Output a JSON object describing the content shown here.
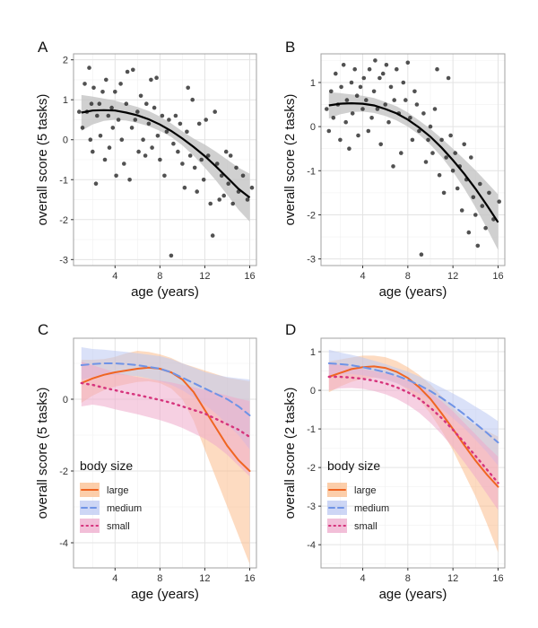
{
  "figure": {
    "panel_letters": [
      "A",
      "B",
      "C",
      "D"
    ]
  },
  "colors": {
    "large": "#f06522",
    "medium": "#6f93e6",
    "small": "#d6337c",
    "large_band": "#fbbe8e",
    "medium_band": "#bcc8f2",
    "small_band": "#eeaacb",
    "points": "#333333",
    "fit": "#000000",
    "fit_band": "#c4c4c4",
    "grid_major": "#e3e3e3",
    "grid_minor": "#f0f0f0",
    "panel_border": "#a0a0a0"
  },
  "chart_data": [
    {
      "panel": "A",
      "type": "scatter",
      "xlabel": "age (years)",
      "ylabel": "overall score (5 tasks)",
      "xlim": [
        0.3,
        16.6
      ],
      "ylim": [
        -3.15,
        2.15
      ],
      "xticks": [
        4,
        8,
        12,
        16
      ],
      "yticks": [
        -3,
        -2,
        -1,
        0,
        1,
        2
      ],
      "points": [
        [
          0.8,
          0.7
        ],
        [
          1.1,
          0.3
        ],
        [
          1.3,
          1.4
        ],
        [
          1.5,
          0.7
        ],
        [
          1.7,
          1.8
        ],
        [
          1.8,
          0.0
        ],
        [
          1.9,
          0.9
        ],
        [
          2.0,
          -0.3
        ],
        [
          2.1,
          1.3
        ],
        [
          2.3,
          -1.1
        ],
        [
          2.4,
          0.6
        ],
        [
          2.6,
          0.9
        ],
        [
          2.7,
          0.1
        ],
        [
          2.9,
          1.2
        ],
        [
          3.1,
          -0.5
        ],
        [
          3.2,
          1.5
        ],
        [
          3.4,
          0.6
        ],
        [
          3.5,
          -0.2
        ],
        [
          3.7,
          0.8
        ],
        [
          3.8,
          0.3
        ],
        [
          4.0,
          1.2
        ],
        [
          4.1,
          -0.9
        ],
        [
          4.3,
          0.5
        ],
        [
          4.5,
          1.4
        ],
        [
          4.6,
          0.0
        ],
        [
          4.8,
          -0.6
        ],
        [
          5.0,
          0.9
        ],
        [
          5.1,
          1.7
        ],
        [
          5.3,
          -1.0
        ],
        [
          5.5,
          0.3
        ],
        [
          5.6,
          1.75
        ],
        [
          5.8,
          0.5
        ],
        [
          6.0,
          0.7
        ],
        [
          6.1,
          -0.3
        ],
        [
          6.3,
          1.1
        ],
        [
          6.5,
          0.0
        ],
        [
          6.7,
          -0.4
        ],
        [
          6.8,
          0.9
        ],
        [
          7.0,
          0.4
        ],
        [
          7.2,
          1.5
        ],
        [
          7.3,
          -0.2
        ],
        [
          7.5,
          0.8
        ],
        [
          7.7,
          1.55
        ],
        [
          7.8,
          0.1
        ],
        [
          8.0,
          -0.5
        ],
        [
          8.2,
          0.6
        ],
        [
          8.4,
          -0.9
        ],
        [
          8.6,
          0.2
        ],
        [
          8.8,
          0.5
        ],
        [
          9.0,
          -2.9
        ],
        [
          9.2,
          -0.1
        ],
        [
          9.4,
          0.6
        ],
        [
          9.6,
          -0.3
        ],
        [
          9.8,
          0.4
        ],
        [
          10.0,
          -0.6
        ],
        [
          10.2,
          -1.2
        ],
        [
          10.4,
          0.2
        ],
        [
          10.5,
          1.3
        ],
        [
          10.7,
          -0.4
        ],
        [
          10.9,
          1.0
        ],
        [
          11.1,
          -0.7
        ],
        [
          11.3,
          -1.3
        ],
        [
          11.5,
          0.4
        ],
        [
          11.7,
          -0.5
        ],
        [
          11.9,
          -1.0
        ],
        [
          12.1,
          0.5
        ],
        [
          12.3,
          -0.4
        ],
        [
          12.5,
          -1.6
        ],
        [
          12.7,
          -2.4
        ],
        [
          12.9,
          0.7
        ],
        [
          13.1,
          -0.6
        ],
        [
          13.3,
          -1.5
        ],
        [
          13.5,
          -0.9
        ],
        [
          13.7,
          -1.4
        ],
        [
          13.9,
          -0.3
        ],
        [
          14.1,
          -1.1
        ],
        [
          14.3,
          -0.4
        ],
        [
          14.5,
          -1.6
        ],
        [
          14.8,
          -0.7
        ],
        [
          15.0,
          -1.3
        ],
        [
          15.4,
          -0.9
        ],
        [
          15.8,
          -1.5
        ],
        [
          16.2,
          -1.2
        ]
      ],
      "fit": {
        "x": [
          1,
          2,
          3,
          4,
          5,
          6,
          7,
          8,
          9,
          10,
          11,
          12,
          13,
          14,
          15,
          16
        ],
        "y": [
          0.68,
          0.73,
          0.74,
          0.73,
          0.68,
          0.61,
          0.51,
          0.38,
          0.22,
          0.03,
          -0.18,
          -0.41,
          -0.67,
          -0.95,
          -1.23,
          -1.45
        ],
        "lower": [
          0.22,
          0.38,
          0.47,
          0.5,
          0.48,
          0.42,
          0.34,
          0.22,
          0.07,
          -0.14,
          -0.4,
          -0.7,
          -1.02,
          -1.38,
          -1.75,
          -2.05
        ],
        "upper": [
          1.12,
          1.08,
          1.03,
          0.98,
          0.9,
          0.82,
          0.72,
          0.58,
          0.41,
          0.21,
          0.03,
          -0.12,
          -0.3,
          -0.5,
          -0.7,
          -0.85
        ]
      }
    },
    {
      "panel": "B",
      "type": "scatter",
      "xlabel": "age (years)",
      "ylabel": "overall score (2 tasks)",
      "xlim": [
        0.3,
        16.6
      ],
      "ylim": [
        -3.15,
        1.65
      ],
      "xticks": [
        4,
        8,
        12,
        16
      ],
      "yticks": [
        -3,
        -2,
        -1,
        0,
        1
      ],
      "points": [
        [
          0.8,
          0.4
        ],
        [
          1.0,
          -0.1
        ],
        [
          1.2,
          0.8
        ],
        [
          1.4,
          0.2
        ],
        [
          1.6,
          1.2
        ],
        [
          1.8,
          0.5
        ],
        [
          2.0,
          -0.3
        ],
        [
          2.1,
          0.9
        ],
        [
          2.3,
          1.4
        ],
        [
          2.5,
          0.1
        ],
        [
          2.6,
          0.6
        ],
        [
          2.8,
          -0.5
        ],
        [
          3.0,
          1.0
        ],
        [
          3.1,
          0.3
        ],
        [
          3.3,
          1.3
        ],
        [
          3.5,
          0.7
        ],
        [
          3.6,
          -0.2
        ],
        [
          3.8,
          0.9
        ],
        [
          4.0,
          0.4
        ],
        [
          4.1,
          1.1
        ],
        [
          4.3,
          0.6
        ],
        [
          4.5,
          -0.1
        ],
        [
          4.6,
          1.3
        ],
        [
          4.8,
          0.2
        ],
        [
          5.0,
          0.8
        ],
        [
          5.1,
          1.5
        ],
        [
          5.3,
          0.4
        ],
        [
          5.5,
          1.1
        ],
        [
          5.6,
          -0.4
        ],
        [
          5.8,
          1.2
        ],
        [
          6.0,
          0.5
        ],
        [
          6.1,
          1.4
        ],
        [
          6.3,
          0.1
        ],
        [
          6.5,
          0.9
        ],
        [
          6.7,
          -0.9
        ],
        [
          6.8,
          0.6
        ],
        [
          7.0,
          1.3
        ],
        [
          7.2,
          0.3
        ],
        [
          7.4,
          -0.6
        ],
        [
          7.6,
          1.0
        ],
        [
          7.8,
          0.6
        ],
        [
          8.0,
          1.45
        ],
        [
          8.2,
          0.2
        ],
        [
          8.4,
          -0.3
        ],
        [
          8.6,
          0.8
        ],
        [
          8.8,
          0.5
        ],
        [
          9.0,
          -0.1
        ],
        [
          9.2,
          -2.9
        ],
        [
          9.4,
          0.3
        ],
        [
          9.6,
          -0.8
        ],
        [
          9.8,
          -0.3
        ],
        [
          10.0,
          0.0
        ],
        [
          10.2,
          -0.6
        ],
        [
          10.4,
          0.4
        ],
        [
          10.6,
          1.3
        ],
        [
          10.8,
          -1.1
        ],
        [
          11.0,
          -0.3
        ],
        [
          11.2,
          -1.5
        ],
        [
          11.4,
          -0.7
        ],
        [
          11.6,
          1.1
        ],
        [
          11.8,
          -0.2
        ],
        [
          12.0,
          -1.0
        ],
        [
          12.2,
          -0.6
        ],
        [
          12.4,
          -1.4
        ],
        [
          12.6,
          -0.9
        ],
        [
          12.8,
          -1.9
        ],
        [
          13.0,
          -0.4
        ],
        [
          13.2,
          -1.2
        ],
        [
          13.4,
          -2.4
        ],
        [
          13.6,
          -0.7
        ],
        [
          13.8,
          -1.6
        ],
        [
          14.0,
          -2.0
        ],
        [
          14.2,
          -2.7
        ],
        [
          14.4,
          -1.3
        ],
        [
          14.6,
          -1.8
        ],
        [
          14.9,
          -2.3
        ],
        [
          15.2,
          -1.5
        ],
        [
          15.6,
          -2.1
        ],
        [
          16.1,
          -1.7
        ]
      ],
      "fit": {
        "x": [
          1,
          2,
          3,
          4,
          5,
          6,
          7,
          8,
          9,
          10,
          11,
          12,
          13,
          14,
          15,
          16
        ],
        "y": [
          0.48,
          0.52,
          0.53,
          0.52,
          0.48,
          0.4,
          0.3,
          0.16,
          -0.02,
          -0.23,
          -0.48,
          -0.76,
          -1.07,
          -1.41,
          -1.78,
          -2.17
        ],
        "lower": [
          0.18,
          0.28,
          0.33,
          0.34,
          0.31,
          0.24,
          0.14,
          0.0,
          -0.18,
          -0.41,
          -0.69,
          -1.02,
          -1.4,
          -1.83,
          -2.3,
          -2.8
        ],
        "upper": [
          0.78,
          0.76,
          0.73,
          0.7,
          0.65,
          0.56,
          0.46,
          0.32,
          0.14,
          -0.05,
          -0.27,
          -0.5,
          -0.74,
          -0.99,
          -1.26,
          -1.54
        ]
      }
    },
    {
      "panel": "C",
      "type": "line",
      "xlabel": "age (years)",
      "ylabel": "overall score (5 tasks)",
      "xlim": [
        0.3,
        16.6
      ],
      "ylim": [
        -4.7,
        1.7
      ],
      "xticks": [
        4,
        8,
        12,
        16
      ],
      "yticks": [
        -4,
        -2,
        0
      ],
      "legend": {
        "title": "body size",
        "position": "bottom-left"
      },
      "x": [
        1,
        2,
        3,
        4,
        5,
        6,
        7,
        8,
        9,
        10,
        11,
        12,
        13,
        14,
        15,
        16
      ],
      "series": [
        {
          "name": "large",
          "style": "solid",
          "y": [
            0.45,
            0.58,
            0.68,
            0.75,
            0.8,
            0.85,
            0.88,
            0.85,
            0.75,
            0.55,
            0.2,
            -0.3,
            -0.8,
            -1.3,
            -1.7,
            -2.0
          ],
          "lower": [
            -0.1,
            0.1,
            0.25,
            0.35,
            0.42,
            0.48,
            0.5,
            0.45,
            0.3,
            0.0,
            -0.6,
            -1.4,
            -2.2,
            -3.0,
            -3.8,
            -4.6
          ],
          "upper": [
            1.1,
            1.1,
            1.12,
            1.18,
            1.28,
            1.35,
            1.32,
            1.25,
            1.15,
            1.0,
            0.9,
            0.8,
            0.7,
            0.6,
            0.55,
            0.5
          ]
        },
        {
          "name": "medium",
          "style": "dashed",
          "y": [
            0.95,
            0.98,
            1.0,
            1.0,
            0.98,
            0.95,
            0.9,
            0.85,
            0.75,
            0.6,
            0.45,
            0.3,
            0.15,
            0.0,
            -0.2,
            -0.45
          ],
          "lower": [
            0.55,
            0.62,
            0.66,
            0.68,
            0.67,
            0.64,
            0.58,
            0.5,
            0.4,
            0.25,
            0.05,
            -0.15,
            -0.4,
            -0.7,
            -1.0,
            -1.4
          ],
          "upper": [
            1.45,
            1.4,
            1.38,
            1.35,
            1.32,
            1.28,
            1.24,
            1.2,
            1.12,
            1.0,
            0.88,
            0.76,
            0.68,
            0.62,
            0.58,
            0.55
          ]
        },
        {
          "name": "small",
          "style": "dotted",
          "y": [
            0.45,
            0.4,
            0.32,
            0.25,
            0.18,
            0.12,
            0.05,
            -0.02,
            -0.1,
            -0.2,
            -0.3,
            -0.4,
            -0.55,
            -0.7,
            -0.85,
            -1.05
          ],
          "lower": [
            -0.2,
            -0.15,
            -0.2,
            -0.28,
            -0.35,
            -0.42,
            -0.5,
            -0.58,
            -0.68,
            -0.8,
            -0.95,
            -1.1,
            -1.3,
            -1.55,
            -1.85,
            -2.15
          ],
          "upper": [
            1.05,
            0.95,
            0.85,
            0.75,
            0.68,
            0.62,
            0.57,
            0.52,
            0.47,
            0.4,
            0.33,
            0.26,
            0.18,
            0.1,
            0.02,
            -0.05
          ]
        }
      ]
    },
    {
      "panel": "D",
      "type": "line",
      "xlabel": "age (years)",
      "ylabel": "overall score (2 tasks)",
      "xlim": [
        0.3,
        16.6
      ],
      "ylim": [
        -4.6,
        1.35
      ],
      "xticks": [
        4,
        8,
        12,
        16
      ],
      "yticks": [
        -4,
        -3,
        -2,
        -1,
        0,
        1
      ],
      "legend": {
        "title": "body size",
        "position": "bottom-left"
      },
      "x": [
        1,
        2,
        3,
        4,
        5,
        6,
        7,
        8,
        9,
        10,
        11,
        12,
        13,
        14,
        15,
        16
      ],
      "series": [
        {
          "name": "large",
          "style": "solid",
          "y": [
            0.35,
            0.45,
            0.55,
            0.6,
            0.62,
            0.58,
            0.48,
            0.32,
            0.08,
            -0.22,
            -0.6,
            -1.0,
            -1.42,
            -1.82,
            -2.18,
            -2.5
          ],
          "lower": [
            -0.05,
            0.1,
            0.22,
            0.3,
            0.33,
            0.3,
            0.2,
            0.02,
            -0.25,
            -0.6,
            -1.05,
            -1.55,
            -2.15,
            -2.75,
            -3.45,
            -4.2
          ],
          "upper": [
            0.75,
            0.8,
            0.85,
            0.9,
            0.9,
            0.86,
            0.76,
            0.6,
            0.4,
            0.15,
            -0.15,
            -0.45,
            -0.7,
            -0.9,
            -1.05,
            -1.2
          ]
        },
        {
          "name": "medium",
          "style": "dashed",
          "y": [
            0.7,
            0.68,
            0.65,
            0.6,
            0.54,
            0.47,
            0.38,
            0.27,
            0.14,
            -0.02,
            -0.2,
            -0.4,
            -0.62,
            -0.86,
            -1.1,
            -1.35
          ],
          "lower": [
            0.4,
            0.42,
            0.42,
            0.39,
            0.34,
            0.27,
            0.18,
            0.06,
            -0.08,
            -0.26,
            -0.48,
            -0.72,
            -0.98,
            -1.28,
            -1.6,
            -1.95
          ],
          "upper": [
            1.05,
            0.98,
            0.92,
            0.85,
            0.77,
            0.68,
            0.58,
            0.48,
            0.36,
            0.22,
            0.07,
            -0.08,
            -0.24,
            -0.42,
            -0.6,
            -0.8
          ]
        },
        {
          "name": "small",
          "style": "dotted",
          "y": [
            0.35,
            0.35,
            0.33,
            0.3,
            0.25,
            0.18,
            0.08,
            -0.05,
            -0.22,
            -0.45,
            -0.72,
            -1.02,
            -1.35,
            -1.7,
            -2.05,
            -2.4
          ],
          "lower": [
            0.0,
            0.05,
            0.06,
            0.04,
            -0.02,
            -0.1,
            -0.22,
            -0.38,
            -0.58,
            -0.84,
            -1.14,
            -1.48,
            -1.86,
            -2.26,
            -2.68,
            -3.1
          ],
          "upper": [
            0.7,
            0.66,
            0.6,
            0.55,
            0.5,
            0.44,
            0.36,
            0.26,
            0.12,
            -0.06,
            -0.28,
            -0.54,
            -0.84,
            -1.14,
            -1.44,
            -1.72
          ]
        }
      ]
    }
  ]
}
